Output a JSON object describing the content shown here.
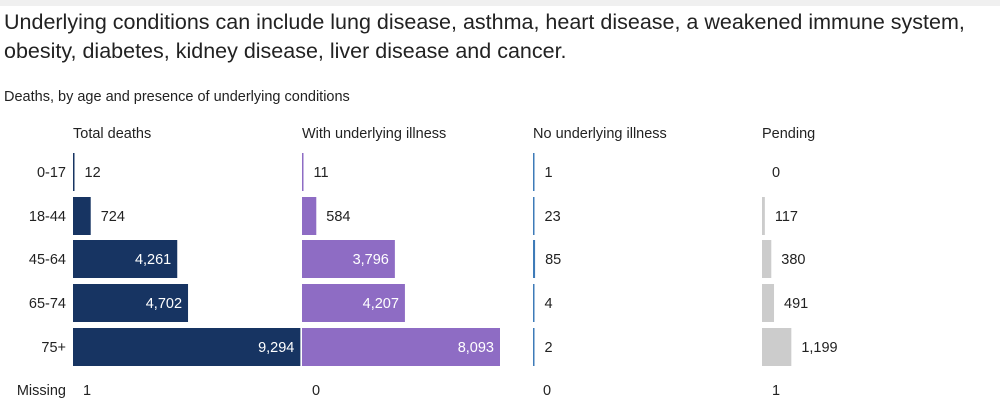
{
  "headline": "Underlying conditions can include lung disease, asthma, heart disease, a weakened immune system, obesity, diabetes, kidney disease, liver disease and cancer.",
  "chart_data": {
    "type": "bar",
    "orientation": "horizontal",
    "title": "Deaths, by age and presence of underlying conditions",
    "categories": [
      "0-17",
      "18-44",
      "45-64",
      "65-74",
      "75+"
    ],
    "series": [
      {
        "name": "Total deaths",
        "values": [
          12,
          724,
          4261,
          4702,
          9294
        ],
        "labels": [
          "12",
          "724",
          "4,261",
          "4,702",
          "9,294"
        ],
        "missing": "1",
        "color": "#173462"
      },
      {
        "name": "With underlying illness",
        "values": [
          11,
          584,
          3796,
          4207,
          8093
        ],
        "labels": [
          "11",
          "584",
          "3,796",
          "4,207",
          "8,093"
        ],
        "missing": "0",
        "color": "#8e6cc4"
      },
      {
        "name": "No underlying illness",
        "values": [
          1,
          23,
          85,
          4,
          2
        ],
        "labels": [
          "1",
          "23",
          "85",
          "4",
          "2"
        ],
        "missing": "0",
        "color": "#3e7bb8"
      },
      {
        "name": "Pending",
        "values": [
          0,
          117,
          380,
          491,
          1199
        ],
        "labels": [
          "0",
          "117",
          "380",
          "491",
          "1,199"
        ],
        "missing": "1",
        "color": "#cccccc"
      }
    ],
    "missing_row_label": "Missing",
    "label_color_inside": "#ffffff",
    "label_color_outside": "#222222"
  }
}
